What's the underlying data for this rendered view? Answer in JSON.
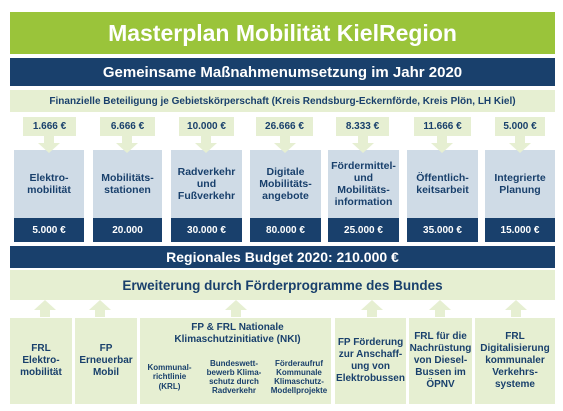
{
  "title": "Masterplan Mobilität KielRegion",
  "subtitle": "Gemeinsame Maßnahmenumsetzung im Jahr 2020",
  "financing_note": "Finanzielle Beteiligung je Gebietskörperschaft (Kreis Rendsburg-Eckernförde, Kreis Plön, LH Kiel)",
  "categories": [
    {
      "amount": "1.666 €",
      "label": "Elektro-\nmobilität",
      "budget": "5.000 €"
    },
    {
      "amount": "6.666 €",
      "label": "Mobilitäts-\nstationen",
      "budget": "20.000"
    },
    {
      "amount": "10.000 €",
      "label": "Radverkehr\nund\nFußverkehr",
      "budget": "30.000 €"
    },
    {
      "amount": "26.666 €",
      "label": "Digitale\nMobilitäts-\nangebote",
      "budget": "80.000 €"
    },
    {
      "amount": "8.333 €",
      "label": "Fördermittel-\nund\nMobilitäts-\ninformation",
      "budget": "25.000 €"
    },
    {
      "amount": "11.666 €",
      "label": "Öffentlich-\nkeitsarbeit",
      "budget": "35.000 €"
    },
    {
      "amount": "5.000 €",
      "label": "Integrierte\nPlanung",
      "budget": "15.000 €"
    }
  ],
  "regional_budget": "Regionales Budget 2020: 210.000 €",
  "extension": "Erweiterung durch Förderprogramme des Bundes",
  "programs": {
    "frl_emob": "FRL Elektro-\nmobilität",
    "fp_erneuerbar": "FP\nErneuerbar\nMobil",
    "nki_header": "FP & FRL Nationale\nKlimaschutzinitiative (NKI)",
    "nki_sub": [
      "Kommunal-\nrichtlinie\n(KRL)",
      "Bundeswett-\nbewerb Klima-\nschutz durch\nRadverkehr",
      "Förderaufruf\nKommunale\nKlimaschutz-\nModellprojekte"
    ],
    "fp_elektrobusse": "FP Förderung\nzur Anschaff-\nung von\nElektrobussen",
    "frl_dieselbusse": "FRL für die\nNachrüstung\nvon Diesel-\nBussen im\nÖPNV",
    "frl_digital": "FRL\nDigitalisierung\nkommunaler\nVerkehrs-\nsysteme"
  },
  "colors": {
    "green": "#9ac43a",
    "navy": "#19406c",
    "light_green": "#e6efd2",
    "light_blue": "#cfdbe6"
  }
}
